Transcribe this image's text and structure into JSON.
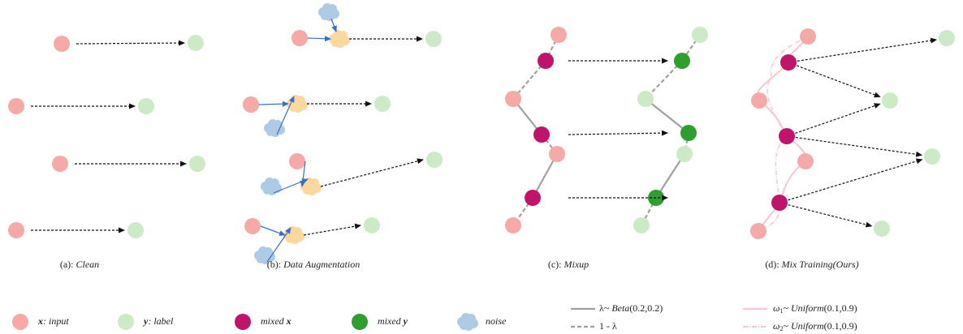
{
  "panels": [
    {
      "letter": "(a)",
      "sep": ": ",
      "name": "Clean"
    },
    {
      "letter": "(b)",
      "sep": ": ",
      "name": "Data Augmentation"
    },
    {
      "letter": "(c)",
      "sep": ": ",
      "name": "Mixup"
    },
    {
      "letter": "(d)",
      "sep": ": ",
      "name": "Mix Training(Ours)"
    }
  ],
  "legend": {
    "input": {
      "symbol": "x",
      "text": ": input"
    },
    "label": {
      "symbol": "y",
      "text": ": label"
    },
    "mixed_x": {
      "text": "mixed ",
      "symbol": "x"
    },
    "mixed_y": {
      "text": "mixed ",
      "symbol": "y"
    },
    "noise": {
      "text": "noise"
    },
    "lambda": {
      "greek": "λ~ ",
      "dist": "Beta",
      "params": "(0.2,0.2)"
    },
    "one_minus_lambda": {
      "text": "1 - λ"
    },
    "omega1": {
      "greek": "ω",
      "sub": "1",
      "tilde": "~ ",
      "dist": "Uniform",
      "params": "(0.1,0.9)"
    },
    "omega2": {
      "greek": "ω",
      "sub": "2",
      "tilde": "~ ",
      "dist": "Uniform",
      "params": "(0.1,0.9)"
    }
  }
}
